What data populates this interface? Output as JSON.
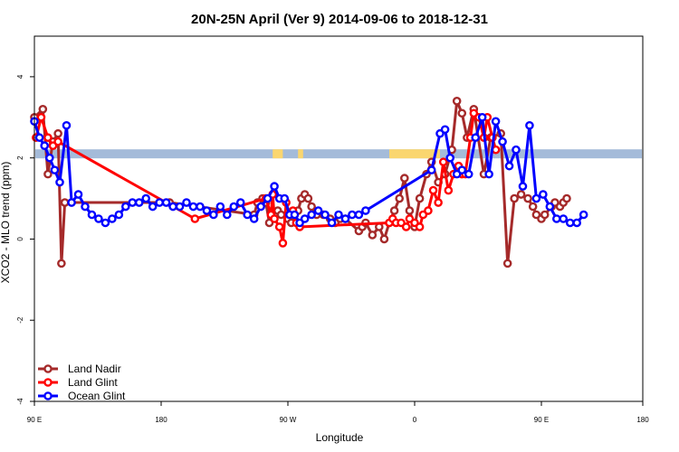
{
  "chart_data": {
    "type": "line",
    "title": "20N-25N April (Ver 9)   2014-09-06 to 2018-12-31",
    "xlabel": "Longitude",
    "ylabel": "XCO2 - MLO trend (ppm)",
    "xlim": [
      -90,
      270
    ],
    "ylim": [
      -4,
      5
    ],
    "x_tick_values": [
      -90,
      -15,
      60,
      135,
      210,
      270
    ],
    "x_tick_labels": [
      "90 E",
      "180",
      "90 W",
      "0",
      "90 E",
      "180"
    ],
    "y_ticks": [
      -4,
      -2,
      0,
      2,
      4
    ],
    "band": {
      "y": 2.1,
      "ocean_color": "#a4bbd9",
      "land_color": "#fad66f",
      "land_segments": [
        [
          51,
          57
        ],
        [
          66,
          69
        ],
        [
          120,
          150
        ]
      ]
    },
    "legend": {
      "position": "bottom-left",
      "entries": [
        "Land Nadir",
        "Land Glint",
        "Ocean Glint"
      ]
    },
    "series": [
      {
        "name": "Land Nadir",
        "color": "#a52a2a",
        "x": [
          -90,
          -85,
          -82,
          -79,
          -76,
          -74,
          -72,
          -10,
          40,
          42,
          45,
          47,
          49,
          52,
          54,
          56,
          60,
          62,
          66,
          68,
          70,
          72,
          74,
          77,
          81,
          85,
          88,
          91,
          94,
          102,
          104,
          106,
          110,
          114,
          117,
          120,
          123,
          126,
          129,
          132,
          135,
          138,
          142,
          145,
          149,
          153,
          157,
          160,
          163,
          166,
          170,
          176,
          180,
          186,
          190,
          194,
          198,
          202,
          205,
          207,
          210,
          212,
          216,
          218,
          221,
          223,
          225
        ],
        "y": [
          3.0,
          3.2,
          1.6,
          2.4,
          2.6,
          -0.6,
          0.9,
          0.9,
          0.6,
          0.9,
          1.0,
          0.9,
          0.4,
          0.6,
          0.7,
          0.6,
          0.5,
          0.4,
          0.7,
          1.0,
          1.1,
          1.0,
          0.8,
          0.6,
          0.6,
          0.5,
          0.4,
          0.5,
          0.5,
          0.2,
          0.3,
          0.4,
          0.1,
          0.3,
          0.0,
          0.4,
          0.7,
          1.0,
          1.5,
          0.7,
          0.3,
          1.0,
          1.6,
          1.9,
          1.4,
          1.6,
          2.2,
          3.4,
          3.1,
          2.5,
          3.2,
          1.6,
          2.5,
          2.6,
          -0.6,
          1.0,
          1.1,
          1.0,
          0.8,
          0.6,
          0.5,
          0.6,
          0.8,
          0.9,
          0.8,
          0.9,
          1.0
        ]
      },
      {
        "name": "Land Glint",
        "color": "#ff0000",
        "x": [
          -89,
          -86,
          -82,
          -79,
          -76,
          5,
          47,
          50,
          51,
          52,
          55,
          57,
          59,
          61,
          63,
          65,
          67,
          120,
          122,
          124,
          127,
          130,
          132,
          135,
          138,
          140,
          143,
          146,
          149,
          152,
          155,
          158,
          161,
          163,
          165,
          168,
          170,
          173,
          176,
          178,
          181,
          183
        ],
        "y": [
          2.5,
          3.0,
          2.5,
          2.3,
          2.4,
          0.5,
          1.0,
          0.6,
          1.1,
          0.5,
          0.3,
          -0.1,
          0.9,
          0.6,
          0.7,
          0.4,
          0.3,
          0.4,
          0.5,
          0.4,
          0.4,
          0.3,
          0.5,
          0.4,
          0.3,
          0.6,
          0.7,
          1.2,
          0.9,
          1.9,
          1.2,
          1.6,
          1.8,
          1.6,
          1.6,
          2.5,
          3.1,
          3.0,
          2.5,
          3.0,
          2.5,
          2.2
        ]
      },
      {
        "name": "Ocean Glint",
        "color": "#0000ff",
        "x": [
          -90,
          -87,
          -84,
          -81,
          -78,
          -75,
          -71,
          -68,
          -64,
          -60,
          -56,
          -52,
          -48,
          -44,
          -40,
          -36,
          -32,
          -28,
          -24,
          -20,
          -16,
          -12,
          -8,
          -4,
          0,
          4,
          8,
          12,
          16,
          20,
          24,
          28,
          32,
          36,
          40,
          44,
          48,
          52,
          55,
          58,
          61,
          64,
          67,
          70,
          74,
          78,
          82,
          86,
          90,
          94,
          98,
          102,
          106,
          145,
          150,
          153,
          156,
          160,
          163,
          167,
          171,
          175,
          179,
          183,
          187,
          191,
          195,
          199,
          203,
          207,
          211,
          215,
          219,
          223,
          227,
          231,
          235
        ],
        "y": [
          2.9,
          2.5,
          2.3,
          2.0,
          1.7,
          1.4,
          2.8,
          0.9,
          1.1,
          0.8,
          0.6,
          0.5,
          0.4,
          0.5,
          0.6,
          0.8,
          0.9,
          0.9,
          1.0,
          0.8,
          0.9,
          0.9,
          0.8,
          0.8,
          0.9,
          0.8,
          0.8,
          0.7,
          0.6,
          0.8,
          0.6,
          0.8,
          0.9,
          0.6,
          0.5,
          0.8,
          1.0,
          1.3,
          1.0,
          1.0,
          0.6,
          0.6,
          0.4,
          0.5,
          0.6,
          0.7,
          0.6,
          0.4,
          0.6,
          0.5,
          0.6,
          0.6,
          0.7,
          1.7,
          2.6,
          2.7,
          2.0,
          1.6,
          1.7,
          1.6,
          2.5,
          3.0,
          1.6,
          2.9,
          2.4,
          1.8,
          2.2,
          1.3,
          2.8,
          1.0,
          1.1,
          0.8,
          0.5,
          0.5,
          0.4,
          0.4,
          0.6
        ]
      }
    ]
  }
}
